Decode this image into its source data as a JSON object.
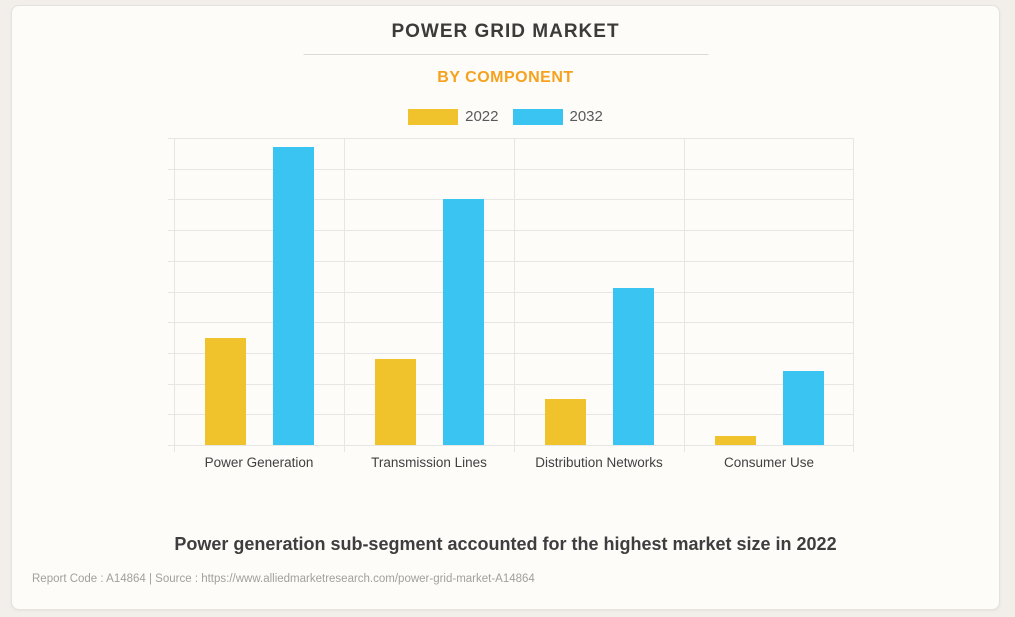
{
  "page": {
    "background_color": "#F2EFEA",
    "card_background": "#FDFCF9"
  },
  "header": {
    "title": "POWER GRID MARKET",
    "title_color": "#3B3B3A",
    "subtitle": "BY COMPONENT",
    "subtitle_color": "#F6A21E"
  },
  "legend": {
    "position": "top-center",
    "items": [
      {
        "label": "2022",
        "color": "#F0C32D"
      },
      {
        "label": "2032",
        "color": "#3AC4F1"
      }
    ]
  },
  "chart_data": {
    "type": "bar",
    "title": "POWER GRID MARKET",
    "subtitle": "BY COMPONENT",
    "categories": [
      "Power Generation",
      "Transmission Lines",
      "Distribution Networks",
      "Consumer Use"
    ],
    "series": [
      {
        "name": "2022",
        "color": "#F0C32D",
        "values": [
          35,
          28,
          15,
          3
        ]
      },
      {
        "name": "2032",
        "color": "#3AC4F1",
        "values": [
          97,
          80,
          51,
          24
        ]
      }
    ],
    "xlabel": "",
    "ylabel": "",
    "ylim": [
      0,
      100
    ],
    "y_tick_interval": 10,
    "y_axis_labels_visible": false,
    "grid": "horizontal lines every 10 units, vertical lines at category boundaries",
    "legend_position": "top",
    "note": "y-axis has no numeric labels; values estimated from gridlines (10 units per gridline)"
  },
  "caption": "Power generation sub-segment accounted for the highest market size in 2022",
  "footer": {
    "text": "Report Code : A14864   |   Source : https://www.alliedmarketresearch.com/power-grid-market-A14864"
  },
  "colors": {
    "gridline": "#E6E6E5",
    "axis_label": "#414141",
    "caption": "#3E3E3E",
    "footer": "#A3A09C"
  }
}
